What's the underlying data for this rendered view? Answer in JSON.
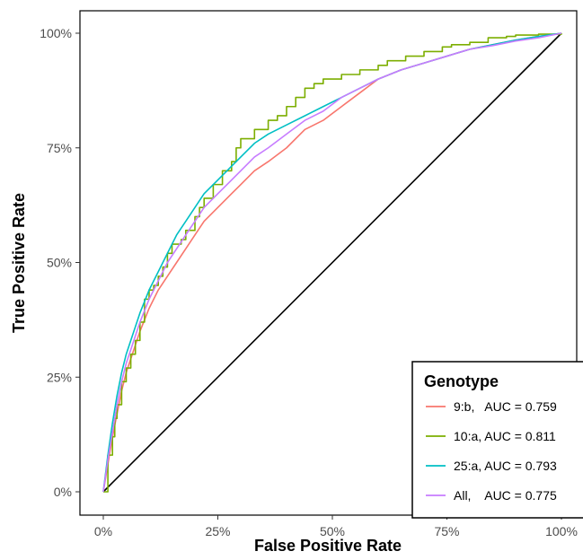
{
  "chart_data": {
    "type": "line",
    "xlabel": "False Positive Rate",
    "ylabel": "True Positive Rate",
    "xlim": [
      0,
      100
    ],
    "ylim": [
      0,
      100
    ],
    "x_ticks": [
      "0%",
      "25%",
      "50%",
      "75%",
      "100%"
    ],
    "y_ticks": [
      "0%",
      "25%",
      "50%",
      "75%",
      "100%"
    ],
    "grid": false,
    "legend": {
      "title": "Genotype",
      "position": "bottom-right",
      "entries": [
        {
          "label": "9:b,   AUC = 0.759",
          "color": "#F8766D"
        },
        {
          "label": "10:a, AUC = 0.811",
          "color": "#7CAE00"
        },
        {
          "label": "25:a, AUC = 0.793",
          "color": "#00BFC4"
        },
        {
          "label": "All,    AUC = 0.775",
          "color": "#C77CFF"
        }
      ]
    },
    "reference_line": {
      "x": [
        0,
        100
      ],
      "y": [
        0,
        100
      ],
      "color": "#000000"
    },
    "series": [
      {
        "name": "9:b,   AUC = 0.759",
        "color": "#F8766D",
        "step": false,
        "x": [
          0,
          1,
          2,
          3,
          4,
          5,
          6,
          8,
          10,
          12,
          14,
          16,
          18,
          20,
          22,
          25,
          28,
          30,
          33,
          36,
          40,
          44,
          48,
          52,
          56,
          60,
          65,
          70,
          75,
          80,
          85,
          90,
          95,
          100
        ],
        "y": [
          0,
          6,
          12,
          17,
          22,
          26,
          29,
          35,
          40,
          44,
          47,
          50,
          53,
          56,
          59,
          62,
          65,
          67,
          70,
          72,
          75,
          79,
          81,
          84,
          87,
          90,
          92,
          93.5,
          95,
          96.5,
          97.5,
          98.5,
          99.3,
          100
        ]
      },
      {
        "name": "10:a, AUC = 0.811",
        "color": "#7CAE00",
        "step": true,
        "x": [
          0,
          1,
          2,
          2.5,
          3,
          4,
          5,
          6,
          7,
          8,
          9,
          10,
          11,
          12,
          13,
          14,
          15,
          17,
          18,
          20,
          21,
          22,
          24,
          26,
          28,
          29,
          30,
          33,
          36,
          38,
          40,
          42,
          44,
          46,
          48,
          52,
          56,
          60,
          62,
          66,
          70,
          74,
          76,
          80,
          84,
          88,
          90,
          95,
          100
        ],
        "y": [
          0,
          8,
          12,
          16,
          19,
          24,
          27,
          30,
          33,
          37,
          42,
          44,
          45,
          47,
          49,
          52,
          54,
          55,
          57,
          60,
          62,
          64,
          67,
          70,
          72,
          75,
          77,
          79,
          81,
          82,
          84,
          86,
          88,
          89,
          90,
          91,
          92,
          93,
          94,
          95,
          96,
          97,
          97.5,
          98,
          99,
          99.3,
          99.6,
          99.8,
          100
        ]
      },
      {
        "name": "25:a, AUC = 0.793",
        "color": "#00BFC4",
        "step": false,
        "x": [
          0,
          1,
          2,
          3,
          4,
          5,
          6,
          8,
          10,
          12,
          14,
          16,
          18,
          20,
          22,
          25,
          28,
          30,
          33,
          36,
          40,
          44,
          48,
          52,
          56,
          60,
          65,
          70,
          75,
          80,
          85,
          90,
          95,
          100
        ],
        "y": [
          0,
          8,
          15,
          21,
          26,
          30,
          33,
          39,
          44,
          48,
          52,
          56,
          59,
          62,
          65,
          68,
          71,
          73,
          76,
          78,
          80,
          82,
          84,
          86,
          88,
          90,
          92,
          93.5,
          95,
          96.5,
          97.5,
          98.5,
          99.3,
          100
        ]
      },
      {
        "name": "All,    AUC = 0.775",
        "color": "#C77CFF",
        "step": false,
        "x": [
          0,
          1,
          2,
          3,
          4,
          5,
          6,
          8,
          10,
          12,
          14,
          16,
          18,
          20,
          22,
          25,
          28,
          30,
          33,
          36,
          40,
          44,
          48,
          52,
          56,
          60,
          65,
          70,
          75,
          80,
          85,
          90,
          95,
          100
        ],
        "y": [
          0,
          7,
          13,
          19,
          24,
          28,
          31,
          37,
          42,
          46,
          50,
          53,
          56,
          59,
          62,
          65,
          68,
          70,
          73,
          75,
          78,
          81,
          83,
          86,
          88,
          90,
          92,
          93.5,
          95,
          96.5,
          97.3,
          98.3,
          99,
          100
        ]
      }
    ]
  }
}
